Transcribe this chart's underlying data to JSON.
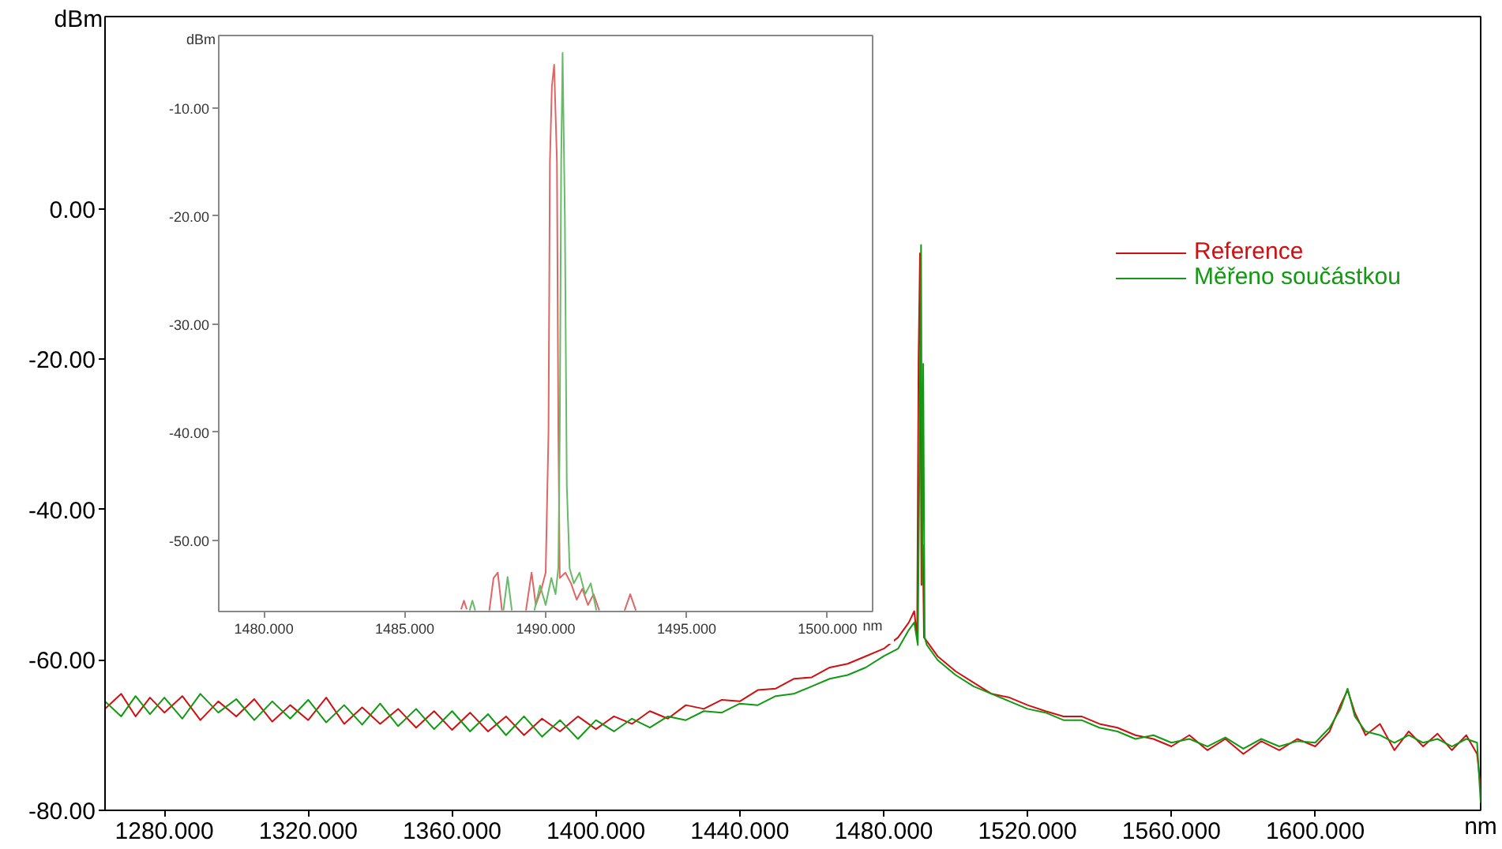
{
  "chart_data": [
    {
      "type": "line",
      "xlabel": "nm",
      "ylabel": "dBm",
      "xlim": [
        1263.5,
        1646
      ],
      "ylim": [
        -80,
        25.6
      ],
      "xticks": [
        {
          "value": 1280,
          "label": "1280.000"
        },
        {
          "value": 1320,
          "label": "1320.000"
        },
        {
          "value": 1360,
          "label": "1360.000"
        },
        {
          "value": 1400,
          "label": "1400.000"
        },
        {
          "value": 1440,
          "label": "1440.000"
        },
        {
          "value": 1480,
          "label": "1480.000"
        },
        {
          "value": 1520,
          "label": "1520.000"
        },
        {
          "value": 1560,
          "label": "1560.000"
        },
        {
          "value": 1600,
          "label": "1600.000"
        }
      ],
      "yticks": [
        {
          "value": 0,
          "label": "0.00"
        },
        {
          "value": -20,
          "label": "-20.00"
        },
        {
          "value": -40,
          "label": "-40.00"
        },
        {
          "value": -60,
          "label": "-60.00"
        },
        {
          "value": -80,
          "label": "-80.00"
        }
      ],
      "legend": "top right",
      "series": [
        {
          "name": "Reference",
          "color": "#d01010",
          "x": [
            1263.5,
            1268,
            1272,
            1276,
            1280,
            1285,
            1290,
            1295,
            1300,
            1305,
            1310,
            1315,
            1320,
            1325,
            1330,
            1335,
            1340,
            1345,
            1350,
            1355,
            1360,
            1365,
            1370,
            1375,
            1380,
            1385,
            1390,
            1395,
            1400,
            1405,
            1410,
            1415,
            1420,
            1425,
            1430,
            1435,
            1440,
            1445,
            1450,
            1455,
            1460,
            1465,
            1470,
            1475,
            1480,
            1484,
            1487,
            1488.5,
            1489.3,
            1489.7,
            1490.1,
            1490.5,
            1490.9,
            1491.2,
            1492,
            1495,
            1500,
            1505,
            1510,
            1515,
            1520,
            1525,
            1530,
            1535,
            1540,
            1545,
            1550,
            1555,
            1560,
            1565,
            1570,
            1575,
            1580,
            1585,
            1590,
            1595,
            1600,
            1604,
            1607,
            1609,
            1611,
            1614,
            1618,
            1622,
            1626,
            1630,
            1634,
            1638,
            1642,
            1645,
            1646
          ],
          "values": [
            -66.5,
            -64.5,
            -67.5,
            -65,
            -67,
            -64.8,
            -68,
            -65.5,
            -67.5,
            -65.2,
            -68.2,
            -66,
            -68,
            -65,
            -68.5,
            -66.3,
            -68.5,
            -66.5,
            -69,
            -66.8,
            -69.3,
            -67,
            -69.5,
            -67.5,
            -70,
            -67.8,
            -69.5,
            -67.5,
            -69.2,
            -67.5,
            -68.5,
            -66.8,
            -67.8,
            -66,
            -66.5,
            -65.3,
            -65.5,
            -64,
            -63.8,
            -62.5,
            -62.3,
            -61,
            -60.5,
            -59.5,
            -58.5,
            -57,
            -55,
            -53.5,
            -57,
            -20,
            -5.9,
            -50,
            -44.7,
            -57,
            -57.5,
            -59.5,
            -61.5,
            -63,
            -64.5,
            -65,
            -66,
            -66.8,
            -67.5,
            -67.5,
            -68.5,
            -69,
            -70,
            -70.5,
            -71.5,
            -70,
            -72,
            -70.5,
            -72.5,
            -70.8,
            -72,
            -70.5,
            -71.5,
            -69.5,
            -66,
            -64,
            -67,
            -70,
            -68.5,
            -72,
            -69.5,
            -71.5,
            -69.8,
            -72,
            -70,
            -72.5,
            -77
          ]
        },
        {
          "name": "Měřeno součástkou",
          "color": "#119911",
          "x": [
            1263.5,
            1268,
            1272,
            1276,
            1280,
            1285,
            1290,
            1295,
            1300,
            1305,
            1310,
            1315,
            1320,
            1325,
            1330,
            1335,
            1340,
            1345,
            1350,
            1355,
            1360,
            1365,
            1370,
            1375,
            1380,
            1385,
            1390,
            1395,
            1400,
            1405,
            1410,
            1415,
            1420,
            1425,
            1430,
            1435,
            1440,
            1445,
            1450,
            1455,
            1460,
            1465,
            1470,
            1475,
            1480,
            1484,
            1487,
            1488.5,
            1489.5,
            1490.0,
            1490.4,
            1490.7,
            1491.0,
            1491.4,
            1492,
            1495,
            1500,
            1505,
            1510,
            1515,
            1520,
            1525,
            1530,
            1535,
            1540,
            1545,
            1550,
            1555,
            1560,
            1565,
            1570,
            1575,
            1580,
            1585,
            1590,
            1595,
            1600,
            1604,
            1607,
            1609,
            1611,
            1614,
            1618,
            1622,
            1626,
            1630,
            1634,
            1638,
            1642,
            1645,
            1646
          ],
          "values": [
            -65.5,
            -67.5,
            -64.8,
            -67.2,
            -65,
            -67.8,
            -64.5,
            -67,
            -65.2,
            -68,
            -65.5,
            -67.8,
            -65.3,
            -68.3,
            -66,
            -68.6,
            -65.8,
            -68.8,
            -66.5,
            -69.2,
            -66.8,
            -69.5,
            -67.2,
            -70,
            -67.5,
            -70.2,
            -68,
            -70.5,
            -68,
            -69.5,
            -67.8,
            -69,
            -67.5,
            -68,
            -66.8,
            -67,
            -65.8,
            -66,
            -64.8,
            -64.5,
            -63.5,
            -62.5,
            -62,
            -61,
            -59.5,
            -58.5,
            -56,
            -55,
            -58,
            -30,
            -4.8,
            -50,
            -20.6,
            -57,
            -58,
            -60,
            -62,
            -63.5,
            -64.5,
            -65.5,
            -66.5,
            -67,
            -68,
            -68,
            -69,
            -69.5,
            -70.5,
            -70,
            -71,
            -70.5,
            -71.5,
            -70.3,
            -71.8,
            -70.5,
            -71.5,
            -70.8,
            -71,
            -69,
            -66.5,
            -63.8,
            -67.5,
            -69.5,
            -70,
            -71,
            -70,
            -71,
            -70.5,
            -71.5,
            -70.5,
            -71,
            -79
          ]
        }
      ]
    },
    {
      "type": "line",
      "xlabel": "nm",
      "ylabel": "dBm",
      "xlim": [
        1478.4,
        1501.6
      ],
      "ylim": [
        -56.6,
        -3.3
      ],
      "xticks": [
        {
          "value": 1480,
          "label": "1480.000"
        },
        {
          "value": 1485,
          "label": "1485.000"
        },
        {
          "value": 1490,
          "label": "1490.000"
        },
        {
          "value": 1495,
          "label": "1495.000"
        },
        {
          "value": 1500,
          "label": "1500.000"
        }
      ],
      "yticks": [
        {
          "value": -10,
          "label": "-10.00"
        },
        {
          "value": -20,
          "label": "-20.00"
        },
        {
          "value": -30,
          "label": "-30.00"
        },
        {
          "value": -40,
          "label": "-40.00"
        },
        {
          "value": -50,
          "label": "-50.00"
        }
      ],
      "series": [
        {
          "color": "#e06666",
          "x": [
            1487.0,
            1487.1,
            1487.2,
            1487.6,
            1488.0,
            1488.15,
            1488.3,
            1488.45,
            1488.9,
            1489.3,
            1489.5,
            1489.65,
            1489.85,
            1490.0,
            1490.1,
            1490.15,
            1490.22,
            1490.3,
            1490.4,
            1490.45,
            1490.5,
            1490.7,
            1490.9,
            1491.1,
            1491.3,
            1491.5,
            1491.7,
            1491.9,
            1492.3,
            1492.8,
            1493.0,
            1493.2
          ],
          "values": [
            -56.4,
            -55.6,
            -56.4,
            null,
            -56.5,
            -53.5,
            -53.0,
            -56.5,
            null,
            -56.5,
            -53.0,
            -56.0,
            -54.5,
            -53.0,
            -40,
            -15,
            -8,
            -6.0,
            -15,
            -40,
            -53.5,
            -53,
            -54,
            -55.5,
            -54.5,
            -56,
            -55,
            -56.5,
            null,
            -56.5,
            -55,
            -56.5
          ]
        },
        {
          "color": "#66bb66",
          "x": [
            1487.3,
            1487.4,
            1487.5,
            1488.0,
            1488.5,
            1488.65,
            1488.8,
            1489.2,
            1489.6,
            1489.8,
            1490.0,
            1490.2,
            1490.35,
            1490.45,
            1490.5,
            1490.55,
            1490.6,
            1490.68,
            1490.75,
            1490.85,
            1491.0,
            1491.2,
            1491.4,
            1491.6,
            1491.8
          ],
          "values": [
            -56.5,
            -55.6,
            -56.5,
            null,
            -56.5,
            -53.4,
            -56.5,
            null,
            -56.5,
            -54.2,
            -56,
            -53.5,
            -55,
            -52.5,
            -40,
            -15,
            -4.9,
            -20,
            -45,
            -52.6,
            -54,
            -53,
            -55,
            -54,
            -56.5
          ]
        }
      ]
    }
  ]
}
